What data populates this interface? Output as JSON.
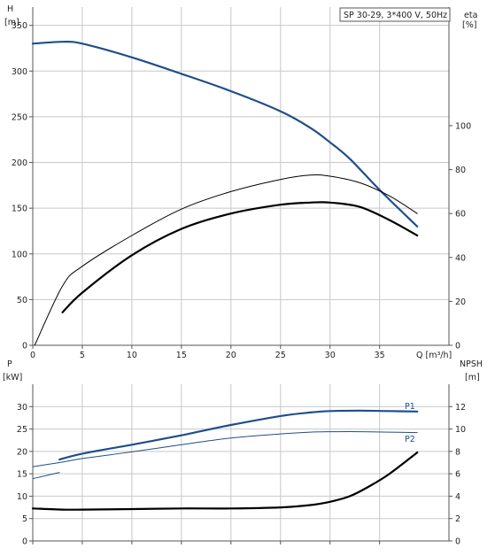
{
  "colors": {
    "blue": "#1f4e89",
    "black": "#000000",
    "grid": "#c8c8c8"
  },
  "chart_data": [
    {
      "type": "line",
      "legend_box": "SP 30-29, 3*400 V, 50Hz",
      "ylabel_left": "H",
      "ylabel_left_unit": "[m]",
      "ylabel_right": "eta",
      "ylabel_right_unit": "[%]",
      "xlabel": "Q [m³/h]",
      "xlim": [
        0,
        42
      ],
      "ylim_left": [
        0,
        370
      ],
      "ylim_right": [
        0,
        154
      ],
      "x_ticks": [
        0,
        5,
        10,
        15,
        20,
        25,
        30,
        35
      ],
      "y_ticks_left": [
        0,
        50,
        100,
        150,
        200,
        250,
        300,
        350
      ],
      "y_ticks_right": [
        0,
        20,
        40,
        60,
        80,
        100
      ],
      "grid": true,
      "series": [
        {
          "axis": "left",
          "color": "blue",
          "width": 2.2,
          "x": [
            0,
            3,
            5,
            10,
            15,
            20,
            25,
            28,
            30,
            32,
            35,
            38.8
          ],
          "y": [
            330,
            332,
            330,
            315,
            297,
            278,
            256,
            238,
            222,
            204,
            170,
            130
          ]
        },
        {
          "axis": "right",
          "color": "black",
          "width": 1,
          "x": [
            0.2,
            3,
            5,
            10,
            15,
            20,
            25,
            28,
            30,
            33,
            36,
            38.8
          ],
          "y": [
            0,
            27,
            36,
            50,
            62,
            70,
            75.5,
            77.5,
            77,
            74,
            68,
            60
          ]
        },
        {
          "axis": "right",
          "color": "black",
          "width": 2.2,
          "x": [
            3,
            5,
            10,
            15,
            20,
            25,
            28,
            30,
            33,
            36,
            38.8
          ],
          "y": [
            15,
            24,
            41,
            53,
            60,
            64,
            65,
            65,
            63,
            57,
            50
          ]
        }
      ]
    },
    {
      "type": "line",
      "ylabel_left": "P",
      "ylabel_left_unit": "[kW]",
      "ylabel_right": "NPSH",
      "ylabel_right_unit": "[m]",
      "xlim": [
        0,
        42
      ],
      "ylim_left": [
        0,
        35
      ],
      "ylim_right": [
        0,
        14
      ],
      "x_ticks": [
        0,
        5,
        10,
        15,
        20,
        25,
        30,
        35
      ],
      "y_ticks_left": [
        0,
        5,
        10,
        15,
        20,
        25,
        30
      ],
      "y_ticks_right": [
        0,
        2,
        4,
        6,
        8,
        10,
        12
      ],
      "grid": true,
      "series": [
        {
          "name": "P1",
          "axis": "left",
          "color": "blue",
          "width": 2.2,
          "x": [
            2.7,
            5,
            10,
            15,
            20,
            25,
            28,
            30,
            33,
            36,
            38.8
          ],
          "y": [
            18.2,
            19.5,
            21.5,
            23.6,
            25.9,
            27.9,
            28.7,
            29.0,
            29.1,
            29.0,
            28.9
          ]
        },
        {
          "name": "P2",
          "axis": "left",
          "color": "blue",
          "width": 1,
          "x": [
            0,
            2.7,
            5,
            10,
            15,
            20,
            25,
            28,
            30,
            33,
            36,
            38.8
          ],
          "y": [
            16.6,
            17.5,
            18.4,
            19.9,
            21.5,
            23.0,
            23.9,
            24.3,
            24.4,
            24.4,
            24.3,
            24.2
          ]
        },
        {
          "axis": "left",
          "color": "blue",
          "width": 1,
          "x": [
            0,
            2.7
          ],
          "y": [
            13.9,
            15.3
          ]
        },
        {
          "axis": "right",
          "color": "black",
          "width": 2.2,
          "x": [
            0,
            3,
            5,
            10,
            15,
            20,
            25,
            28,
            30,
            32,
            34,
            36,
            38.8
          ],
          "y": [
            2.9,
            2.8,
            2.8,
            2.85,
            2.9,
            2.9,
            3.0,
            3.2,
            3.5,
            4.0,
            4.9,
            6.0,
            7.9
          ]
        }
      ]
    }
  ]
}
